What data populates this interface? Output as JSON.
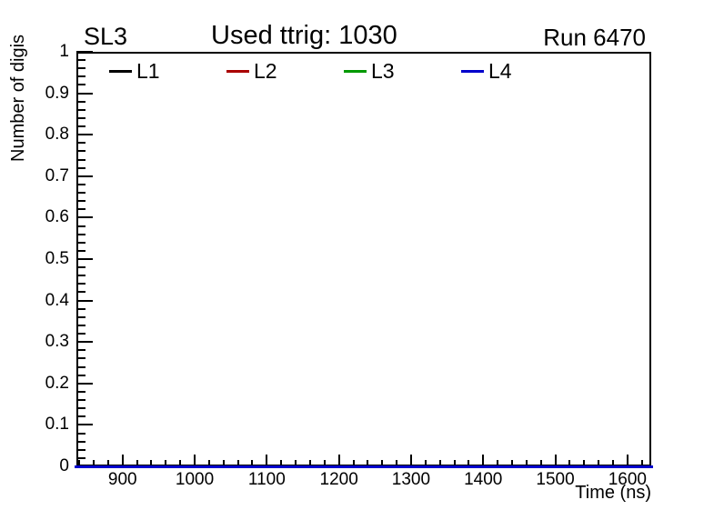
{
  "chart_data": {
    "type": "line",
    "title": "Used ttrig: 1030",
    "top_left_label": "SL3",
    "top_right_label": "Run 6470",
    "xlabel": "Time (ns)",
    "ylabel": "Number of digis",
    "xlim": [
      836,
      1633
    ],
    "ylim": [
      0,
      1
    ],
    "x_major_ticks": [
      900,
      1000,
      1100,
      1200,
      1300,
      1400,
      1500,
      1600
    ],
    "x_minor_step": 20,
    "y_major_ticks": [
      0,
      0.1,
      0.2,
      0.3,
      0.4,
      0.5,
      0.6,
      0.7,
      0.8,
      0.9,
      1
    ],
    "y_tick_labels": [
      "0",
      "0.1",
      "0.2",
      "0.3",
      "0.4",
      "0.5",
      "0.6",
      "0.7",
      "0.8",
      "0.9",
      "1"
    ],
    "y_minor_step": 0.02,
    "grid": false,
    "legend_position": "top-inside-single-row",
    "axis_color": "#000000",
    "background_color": "#ffffff",
    "series": [
      {
        "name": "L1",
        "color": "#000000",
        "x": [
          836,
          1633
        ],
        "values": [
          0,
          0
        ]
      },
      {
        "name": "L2",
        "color": "#aa0000",
        "x": [
          836,
          1633
        ],
        "values": [
          0,
          0
        ]
      },
      {
        "name": "L3",
        "color": "#009900",
        "x": [
          836,
          1633
        ],
        "values": [
          0,
          0
        ]
      },
      {
        "name": "L4",
        "color": "#0000cc",
        "x": [
          836,
          1633
        ],
        "values": [
          0,
          0
        ]
      }
    ]
  }
}
